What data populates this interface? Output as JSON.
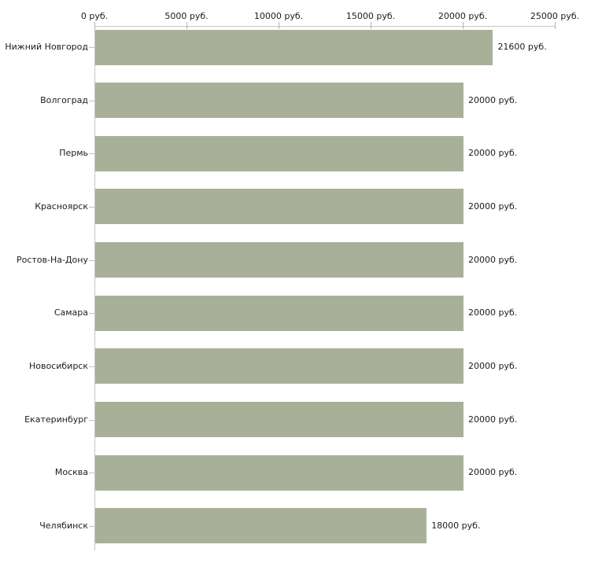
{
  "chart_data": {
    "type": "bar",
    "orientation": "horizontal",
    "title": "",
    "categories": [
      "Нижний Новгород",
      "Волгоград",
      "Пермь",
      "Красноярск",
      "Ростов-На-Дону",
      "Самара",
      "Новосибирск",
      "Екатеринбург",
      "Москва",
      "Челябинск"
    ],
    "values": [
      21600,
      20000,
      20000,
      20000,
      20000,
      20000,
      20000,
      20000,
      20000,
      18000
    ],
    "value_labels": [
      "21600 руб.",
      "20000 руб.",
      "20000 руб.",
      "20000 руб.",
      "20000 руб.",
      "20000 руб.",
      "20000 руб.",
      "20000 руб.",
      "20000 руб.",
      "18000 руб."
    ],
    "x_ticks": [
      0,
      5000,
      10000,
      15000,
      20000,
      25000
    ],
    "x_tick_labels": [
      "0 руб.",
      "5000 руб.",
      "10000 руб.",
      "15000 руб.",
      "20000 руб.",
      "25000 руб."
    ],
    "xlim": [
      0,
      25000
    ],
    "unit": "руб.",
    "grid": false,
    "legend": "none",
    "bar_color": "#a8b198",
    "axis_color": "#c6c6c6",
    "x_tick_color": "#b4b4a0",
    "y_tick_color": "#c2c2b2",
    "text_color": "#1c1c1c"
  }
}
